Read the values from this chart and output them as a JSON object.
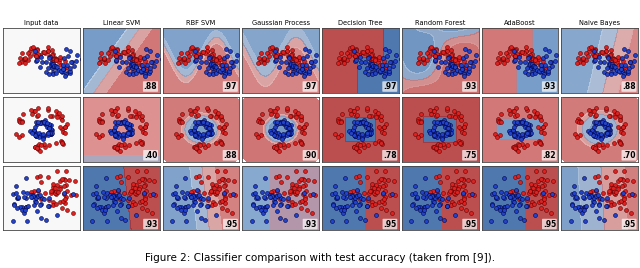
{
  "title": "Figure 2: Classifier comparison with test accuracy (taken from [9]).",
  "title_fontsize": 8,
  "col_labels": [
    "Input data",
    "Linear SVM",
    "RBF SVM",
    "Gaussian Process",
    "Decision Tree",
    "Random Forest",
    "AdaBoost",
    "Naive Bayes"
  ],
  "row_accuracies": [
    [
      "",
      ".88",
      ".97",
      ".97",
      ".97",
      ".93",
      ".93",
      ".88"
    ],
    [
      "",
      ".40",
      ".88",
      ".90",
      ".78",
      ".75",
      ".82",
      ".70"
    ],
    [
      "",
      ".93",
      ".95",
      ".93",
      ".95",
      ".95",
      ".95",
      ".95"
    ]
  ],
  "fig_width": 6.4,
  "fig_height": 2.68,
  "red_dot": "#dd2222",
  "blue_dot": "#2244cc",
  "red_bg_dark": "#b03030",
  "red_bg_light": "#e8a0a0",
  "blue_bg_dark": "#3060a0",
  "blue_bg_light": "#a0c0e0",
  "white_bg": "#f8f8f8"
}
